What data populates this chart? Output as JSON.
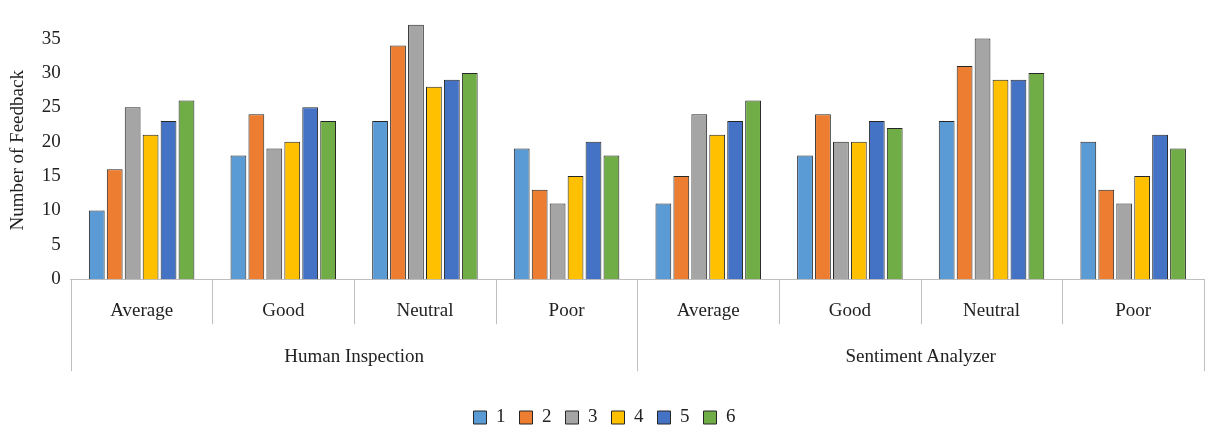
{
  "chart_data": {
    "type": "bar",
    "ylabel": "Number of Feedback",
    "categories": [
      "Average",
      "Good",
      "Neutral",
      "Poor",
      "Average",
      "Good",
      "Neutral",
      "Poor"
    ],
    "annotations": [
      "Human Inspection",
      "Sentiment Analyzer"
    ],
    "series": [
      {
        "name": "1",
        "color": "#5b9bd5",
        "values": [
          10,
          18,
          23,
          19,
          11,
          18,
          23,
          20
        ]
      },
      {
        "name": "2",
        "color": "#ed7d31",
        "values": [
          16,
          24,
          34,
          13,
          15,
          24,
          31,
          13
        ]
      },
      {
        "name": "3",
        "color": "#a5a5a5",
        "values": [
          25,
          19,
          37,
          11,
          24,
          20,
          35,
          11
        ]
      },
      {
        "name": "4",
        "color": "#ffc000",
        "values": [
          21,
          20,
          28,
          15,
          21,
          20,
          29,
          15
        ]
      },
      {
        "name": "5",
        "color": "#4472c4",
        "values": [
          23,
          25,
          29,
          20,
          23,
          23,
          29,
          21
        ]
      },
      {
        "name": "6",
        "color": "#70ad47",
        "values": [
          26,
          23,
          30,
          18,
          26,
          22,
          30,
          19
        ]
      }
    ],
    "ylim": [
      0,
      37.5
    ],
    "yticks": [
      0,
      5,
      10,
      15,
      20,
      25,
      30,
      35
    ],
    "grid": false,
    "legend": "bottom"
  }
}
